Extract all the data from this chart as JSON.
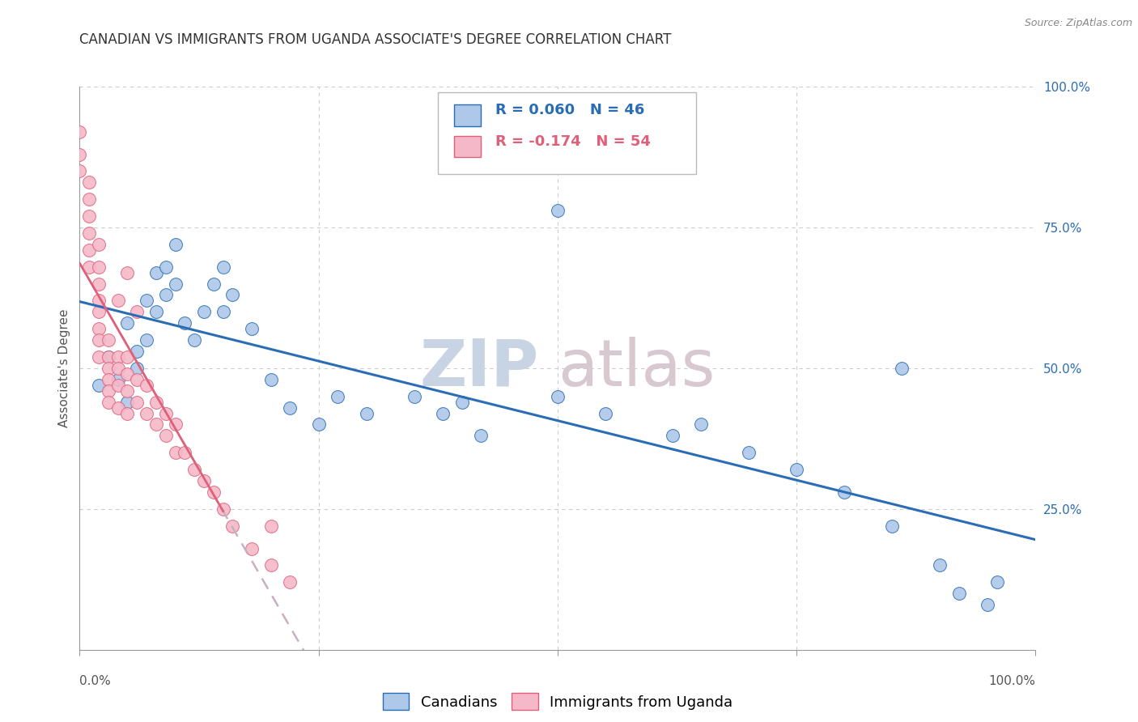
{
  "title": "CANADIAN VS IMMIGRANTS FROM UGANDA ASSOCIATE'S DEGREE CORRELATION CHART",
  "source": "Source: ZipAtlas.com",
  "ylabel": "Associate's Degree",
  "legend_label1": "Canadians",
  "legend_label2": "Immigrants from Uganda",
  "r1": 0.06,
  "n1": 46,
  "r2": -0.174,
  "n2": 54,
  "color_canadian": "#adc8e8",
  "color_ugandan": "#f5b8c8",
  "line_color_canadian": "#2a6db5",
  "line_color_ugandan": "#e0607a",
  "line_color_ugandan_dashed": "#c8b0c0",
  "watermark_zip": "ZIP",
  "watermark_atlas": "atlas",
  "watermark_color": "#ccd8e8",
  "background_color": "#ffffff",
  "grid_color": "#cccccc",
  "canadians_x": [
    0.02,
    0.03,
    0.04,
    0.05,
    0.05,
    0.06,
    0.06,
    0.07,
    0.07,
    0.08,
    0.08,
    0.09,
    0.09,
    0.1,
    0.1,
    0.11,
    0.12,
    0.13,
    0.14,
    0.15,
    0.15,
    0.16,
    0.18,
    0.2,
    0.22,
    0.25,
    0.27,
    0.3,
    0.35,
    0.38,
    0.4,
    0.42,
    0.5,
    0.55,
    0.62,
    0.65,
    0.7,
    0.75,
    0.8,
    0.85,
    0.9,
    0.92,
    0.95,
    0.96,
    0.86,
    0.5
  ],
  "canadians_y": [
    0.47,
    0.52,
    0.48,
    0.58,
    0.44,
    0.53,
    0.5,
    0.62,
    0.55,
    0.67,
    0.6,
    0.63,
    0.68,
    0.72,
    0.65,
    0.58,
    0.55,
    0.6,
    0.65,
    0.68,
    0.6,
    0.63,
    0.57,
    0.48,
    0.43,
    0.4,
    0.45,
    0.42,
    0.45,
    0.42,
    0.44,
    0.38,
    0.45,
    0.42,
    0.38,
    0.4,
    0.35,
    0.32,
    0.28,
    0.22,
    0.15,
    0.1,
    0.08,
    0.12,
    0.5,
    0.78
  ],
  "ugandans_x": [
    0.0,
    0.0,
    0.0,
    0.01,
    0.01,
    0.01,
    0.01,
    0.01,
    0.01,
    0.02,
    0.02,
    0.02,
    0.02,
    0.02,
    0.02,
    0.02,
    0.02,
    0.03,
    0.03,
    0.03,
    0.03,
    0.03,
    0.03,
    0.04,
    0.04,
    0.04,
    0.04,
    0.05,
    0.05,
    0.05,
    0.05,
    0.06,
    0.06,
    0.07,
    0.07,
    0.08,
    0.08,
    0.09,
    0.09,
    0.1,
    0.1,
    0.11,
    0.12,
    0.13,
    0.14,
    0.15,
    0.16,
    0.18,
    0.2,
    0.22,
    0.04,
    0.05,
    0.06,
    0.2
  ],
  "ugandans_y": [
    0.92,
    0.88,
    0.85,
    0.83,
    0.8,
    0.77,
    0.74,
    0.71,
    0.68,
    0.72,
    0.68,
    0.65,
    0.62,
    0.6,
    0.57,
    0.55,
    0.52,
    0.55,
    0.52,
    0.5,
    0.48,
    0.46,
    0.44,
    0.52,
    0.5,
    0.47,
    0.43,
    0.52,
    0.49,
    0.46,
    0.42,
    0.48,
    0.44,
    0.47,
    0.42,
    0.44,
    0.4,
    0.42,
    0.38,
    0.4,
    0.35,
    0.35,
    0.32,
    0.3,
    0.28,
    0.25,
    0.22,
    0.18,
    0.15,
    0.12,
    0.62,
    0.67,
    0.6,
    0.22
  ],
  "xlim": [
    0.0,
    1.0
  ],
  "ylim": [
    0.0,
    1.0
  ],
  "xticks_major": [
    0.0,
    0.25,
    0.5,
    0.75,
    1.0
  ],
  "xtick_labels_bottom": [
    "0.0%",
    "",
    "",
    "",
    "100.0%"
  ],
  "ytick_right_vals": [
    0.25,
    0.5,
    0.75,
    1.0
  ],
  "ytick_right_labels": [
    "25.0%",
    "50.0%",
    "75.0%",
    "100.0%"
  ],
  "title_fontsize": 12,
  "axis_fontsize": 11,
  "tick_fontsize": 11,
  "legend_fontsize": 13,
  "right_tick_color": "#2a6db5"
}
